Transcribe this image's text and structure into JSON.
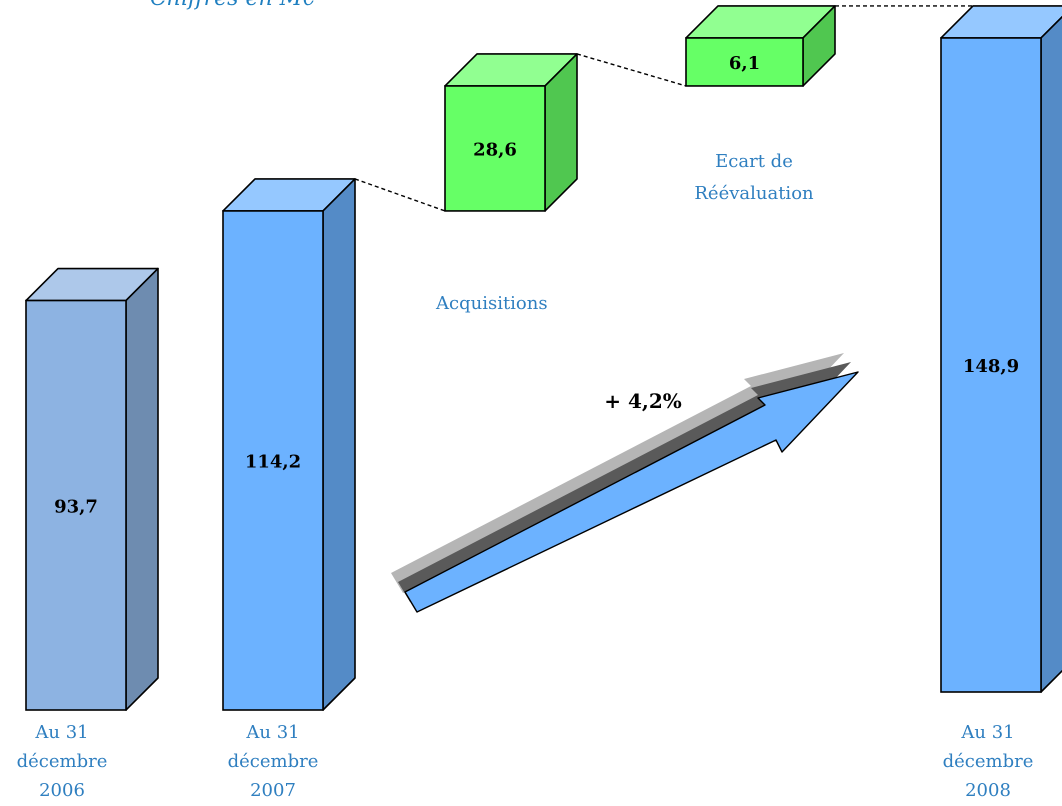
{
  "subtitle": "Chiffres en M€",
  "colors": {
    "bar_2006": "#8db3e2",
    "bar_blue": "#6cb2ff",
    "step_green": "#66ff66",
    "label_text": "#2f7fc0"
  },
  "categories": [
    {
      "line1": "Au 31",
      "line2": "décembre",
      "line3": "2006"
    },
    {
      "line1": "Au 31",
      "line2": "décembre",
      "line3": "2007"
    },
    {
      "line1": "Au 31",
      "line2": "décembre",
      "line3": "2008"
    }
  ],
  "steps": {
    "acquisitions": {
      "label": "Acquisitions"
    },
    "reevaluation": {
      "line1": "Ecart de",
      "line2": "Réévaluation"
    }
  },
  "growth": {
    "label": "+ 4,2%"
  },
  "chart_data": {
    "type": "bar",
    "subtype": "waterfall",
    "items": [
      {
        "name": "Au 31 décembre 2006",
        "value": 93.7,
        "label": "93,7",
        "kind": "total"
      },
      {
        "name": "Au 31 décembre 2007",
        "value": 114.2,
        "label": "114,2",
        "kind": "total"
      },
      {
        "name": "Acquisitions",
        "value": 28.6,
        "label": "28,6",
        "kind": "increment"
      },
      {
        "name": "Ecart de Réévaluation",
        "value": 6.1,
        "label": "6,1",
        "kind": "increment"
      },
      {
        "name": "Au 31 décembre 2008",
        "value": 148.9,
        "label": "148,9",
        "kind": "total"
      }
    ],
    "annotations": [
      "+ 4,2%"
    ],
    "grid": false,
    "legend": "none"
  }
}
